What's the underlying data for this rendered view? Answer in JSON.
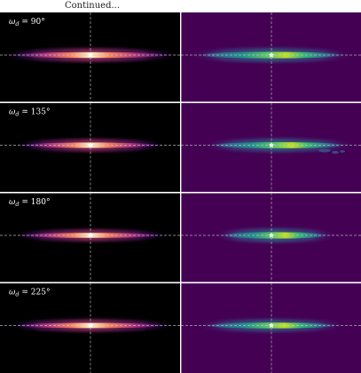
{
  "caption": "Continued...",
  "panels": [
    {
      "label": "90°",
      "omega_deg": 90
    },
    {
      "label": "135°",
      "omega_deg": 135
    },
    {
      "label": "180°",
      "omega_deg": 180
    },
    {
      "label": "225°",
      "omega_deg": 225
    }
  ],
  "label_prefix": "ω",
  "label_subscript": "d",
  "colors": {
    "left_bg": "#000000",
    "right_bg": "#440154",
    "separator": "#ffffff",
    "crosshair": "#cfcfcf",
    "star": "#ffffff"
  },
  "colormaps": {
    "left": "inferno",
    "right": "viridis"
  },
  "icons": {
    "star": "star-marker-icon"
  }
}
